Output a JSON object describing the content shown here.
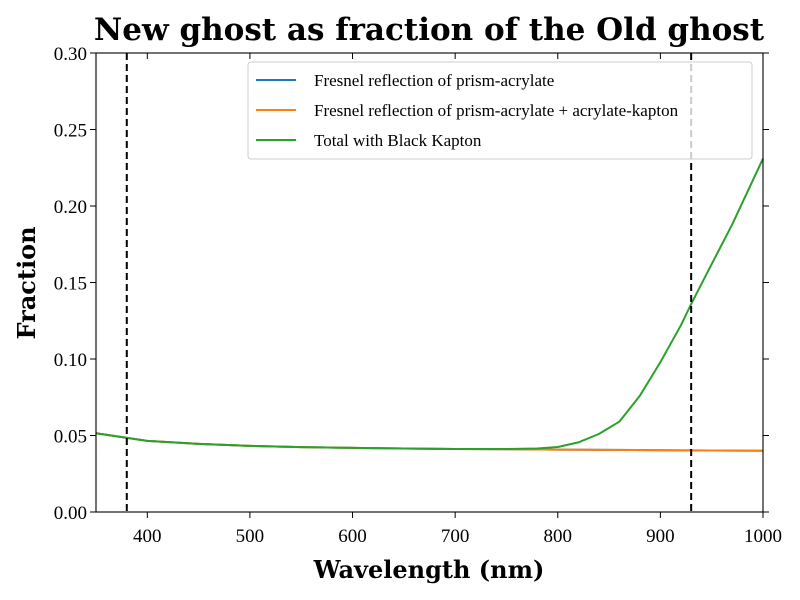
{
  "chart_data": {
    "type": "line",
    "title": "New ghost as fraction of the Old ghost",
    "xlabel": "Wavelength (nm)",
    "ylabel": "Fraction",
    "xlim": [
      350,
      1000
    ],
    "ylim": [
      0.0,
      0.3
    ],
    "x_ticks": [
      "400",
      "500",
      "600",
      "700",
      "800",
      "900",
      "1000"
    ],
    "y_ticks": [
      "0.00",
      "0.05",
      "0.10",
      "0.15",
      "0.20",
      "0.25",
      "0.30"
    ],
    "grid": false,
    "legend_position": "upper right",
    "vertical_lines": [
      {
        "x": 380,
        "style": "dashed",
        "color": "#000000"
      },
      {
        "x": 930,
        "style": "dashed",
        "color": "#000000"
      }
    ],
    "series": [
      {
        "name": "Fresnel reflection of prism-acrylate",
        "color": "#1f77b4",
        "x": [
          350,
          400,
          450,
          500,
          550,
          600,
          650,
          700,
          750,
          800,
          850,
          900,
          950,
          1000
        ],
        "y": [
          0.0515,
          0.0465,
          0.0445,
          0.0432,
          0.0424,
          0.0419,
          0.0415,
          0.0412,
          0.041,
          0.0408,
          0.0406,
          0.0404,
          0.0402,
          0.04
        ]
      },
      {
        "name": "Fresnel reflection of prism-acrylate + acrylate-kapton",
        "color": "#ff7f0e",
        "x": [
          350,
          400,
          450,
          500,
          550,
          600,
          650,
          700,
          750,
          800,
          850,
          900,
          950,
          1000
        ],
        "y": [
          0.0515,
          0.0465,
          0.0445,
          0.0432,
          0.0424,
          0.0419,
          0.0415,
          0.0412,
          0.041,
          0.0408,
          0.0406,
          0.0404,
          0.0402,
          0.04
        ]
      },
      {
        "name": "Total with Black Kapton",
        "color": "#2ca02c",
        "x": [
          350,
          400,
          450,
          500,
          550,
          600,
          650,
          700,
          750,
          780,
          800,
          820,
          840,
          860,
          880,
          900,
          920,
          930,
          950,
          970,
          1000
        ],
        "y": [
          0.0515,
          0.0465,
          0.0445,
          0.0432,
          0.0424,
          0.0419,
          0.0415,
          0.0412,
          0.0412,
          0.0415,
          0.0425,
          0.0455,
          0.051,
          0.059,
          0.076,
          0.098,
          0.122,
          0.136,
          0.162,
          0.188,
          0.231
        ]
      }
    ]
  }
}
